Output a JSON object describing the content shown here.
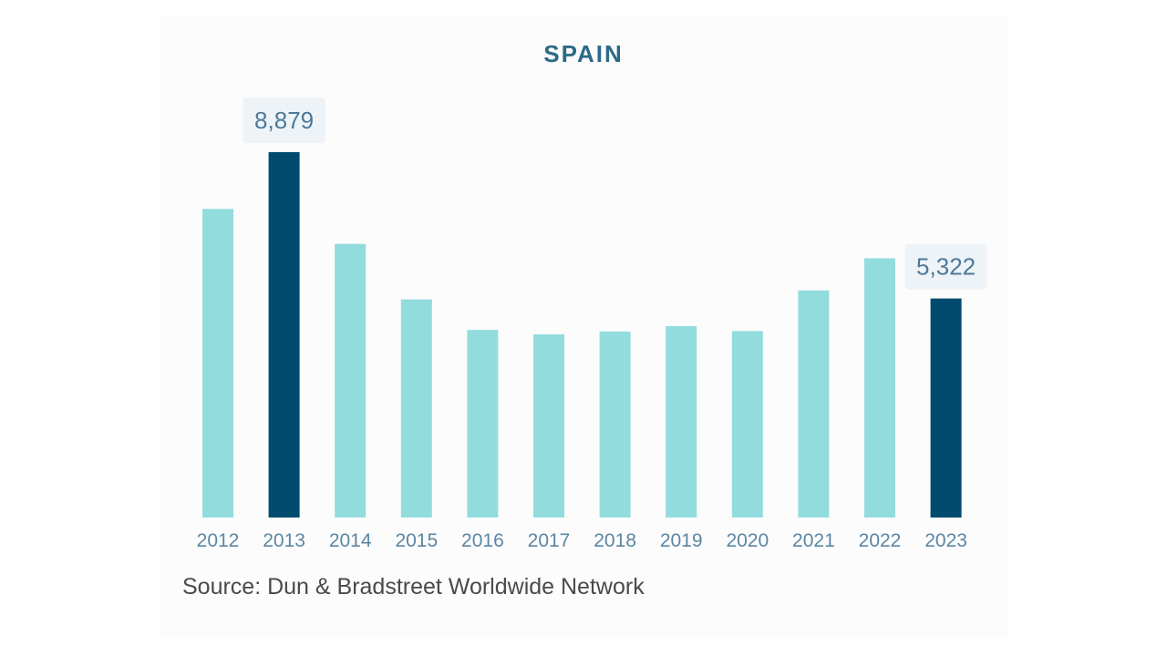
{
  "chart_data": {
    "type": "bar",
    "title": "SPAIN",
    "categories": [
      "2012",
      "2013",
      "2014",
      "2015",
      "2016",
      "2017",
      "2018",
      "2019",
      "2020",
      "2021",
      "2022",
      "2023"
    ],
    "values": [
      7500,
      8879,
      6650,
      5300,
      4560,
      4450,
      4520,
      4650,
      4530,
      5520,
      6300,
      5322
    ],
    "highlighted": [
      "2013",
      "2023"
    ],
    "data_labels": [
      {
        "category": "2013",
        "text": "8,879"
      },
      {
        "category": "2023",
        "text": "5,322"
      }
    ],
    "ylim": [
      0,
      8879
    ],
    "grid": false,
    "legend": "none",
    "colors": {
      "bar": "#92dcdd",
      "highlight": "#004b6e",
      "label_box": "#eef3f7"
    }
  },
  "source": "Source: Dun & Bradstreet Worldwide Network"
}
